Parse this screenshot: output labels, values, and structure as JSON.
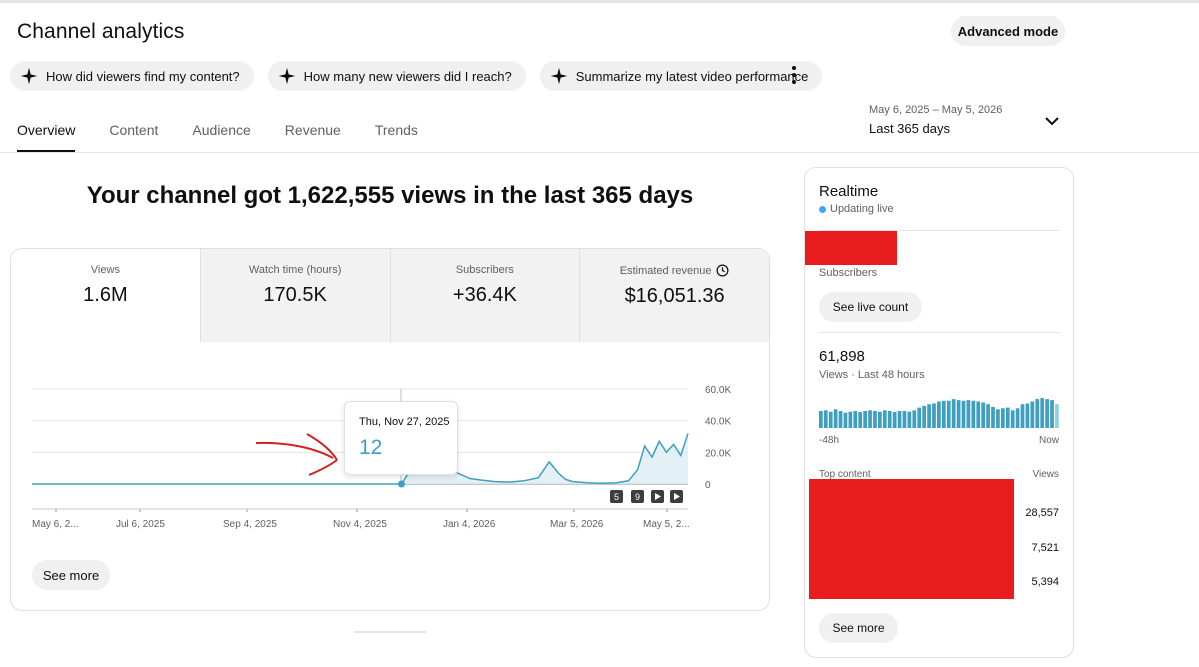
{
  "page": {
    "title": "Channel analytics",
    "advanced_mode": "Advanced mode",
    "more_icon": "more-vert-icon"
  },
  "chips": [
    {
      "label": "How did viewers find my content?",
      "icon": "sparkle-icon"
    },
    {
      "label": "How many new viewers did I reach?",
      "icon": "sparkle-icon"
    },
    {
      "label": "Summarize my latest video performance",
      "icon": "sparkle-icon"
    }
  ],
  "tabs": [
    {
      "label": "Overview",
      "active": true
    },
    {
      "label": "Content",
      "active": false
    },
    {
      "label": "Audience",
      "active": false
    },
    {
      "label": "Revenue",
      "active": false
    },
    {
      "label": "Trends",
      "active": false
    }
  ],
  "date_range": {
    "range": "May 6, 2025 – May 5, 2026",
    "label": "Last 365 days"
  },
  "headline": "Your channel got 1,622,555 views in the last 365 days",
  "metrics": [
    {
      "label": "Views",
      "value": "1.6M"
    },
    {
      "label": "Watch time (hours)",
      "value": "170.5K"
    },
    {
      "label": "Subscribers",
      "value": "+36.4K"
    },
    {
      "label": "Estimated revenue",
      "value": "$16,051.36"
    }
  ],
  "tooltip": {
    "date": "Thu, Nov 27, 2025",
    "value": "12"
  },
  "markers": [
    "5",
    "9"
  ],
  "see_more": "See more",
  "colors": {
    "accent": "#3e9fc0",
    "redaction": "#e81c1c",
    "annotation": "#d42020"
  },
  "chart_data": {
    "type": "area",
    "x_tick_labels": [
      "May 6, 2...",
      "Jul 6, 2025",
      "Sep 4, 2025",
      "Nov 4, 2025",
      "Jan 4, 2026",
      "Mar 5, 2026",
      "May 5, 2..."
    ],
    "y_tick_labels": [
      "60.0K",
      "40.0K",
      "20.0K",
      "0"
    ],
    "ylim": [
      0,
      60000
    ],
    "x": [
      "2025-05-06",
      "2025-11-27",
      "2025-12-02",
      "2025-12-06",
      "2025-12-10",
      "2025-12-13",
      "2025-12-16",
      "2025-12-19",
      "2025-12-22",
      "2025-12-26",
      "2025-12-30",
      "2026-01-04",
      "2026-01-10",
      "2026-01-18",
      "2026-01-26",
      "2026-02-03",
      "2026-02-11",
      "2026-02-17",
      "2026-02-22",
      "2026-02-26",
      "2026-03-02",
      "2026-03-10",
      "2026-03-18",
      "2026-03-26",
      "2026-04-02",
      "2026-04-07",
      "2026-04-11",
      "2026-04-15",
      "2026-04-19",
      "2026-04-23",
      "2026-04-27",
      "2026-05-01",
      "2026-05-05"
    ],
    "y": [
      0,
      12,
      9000,
      16000,
      24000,
      18000,
      40000,
      24000,
      13000,
      8000,
      6000,
      3500,
      2500,
      1500,
      1200,
      2000,
      4000,
      14000,
      7000,
      3000,
      1500,
      800,
      500,
      700,
      2000,
      9000,
      24000,
      17000,
      27000,
      20000,
      25000,
      18000,
      32000
    ],
    "grid": true
  },
  "realtime": {
    "title": "Realtime",
    "status": "Updating live",
    "subscribers_label": "Subscribers",
    "live_button": "See live count",
    "views": "61,898",
    "views_label": "Views · Last 48 hours",
    "axis_start": "-48h",
    "axis_end": "Now",
    "top_content_label": "Top content",
    "views_col_label": "Views",
    "top_values": [
      "28,557",
      "7,521",
      "5,394"
    ],
    "bars": [
      0.5,
      0.52,
      0.48,
      0.55,
      0.5,
      0.45,
      0.48,
      0.5,
      0.47,
      0.5,
      0.52,
      0.5,
      0.48,
      0.52,
      0.5,
      0.47,
      0.5,
      0.5,
      0.48,
      0.52,
      0.6,
      0.65,
      0.7,
      0.72,
      0.78,
      0.8,
      0.8,
      0.85,
      0.82,
      0.8,
      0.82,
      0.8,
      0.78,
      0.75,
      0.7,
      0.62,
      0.55,
      0.58,
      0.6,
      0.52,
      0.58,
      0.7,
      0.72,
      0.78,
      0.85,
      0.88,
      0.85,
      0.82,
      0.7
    ],
    "see_more": "See more"
  }
}
